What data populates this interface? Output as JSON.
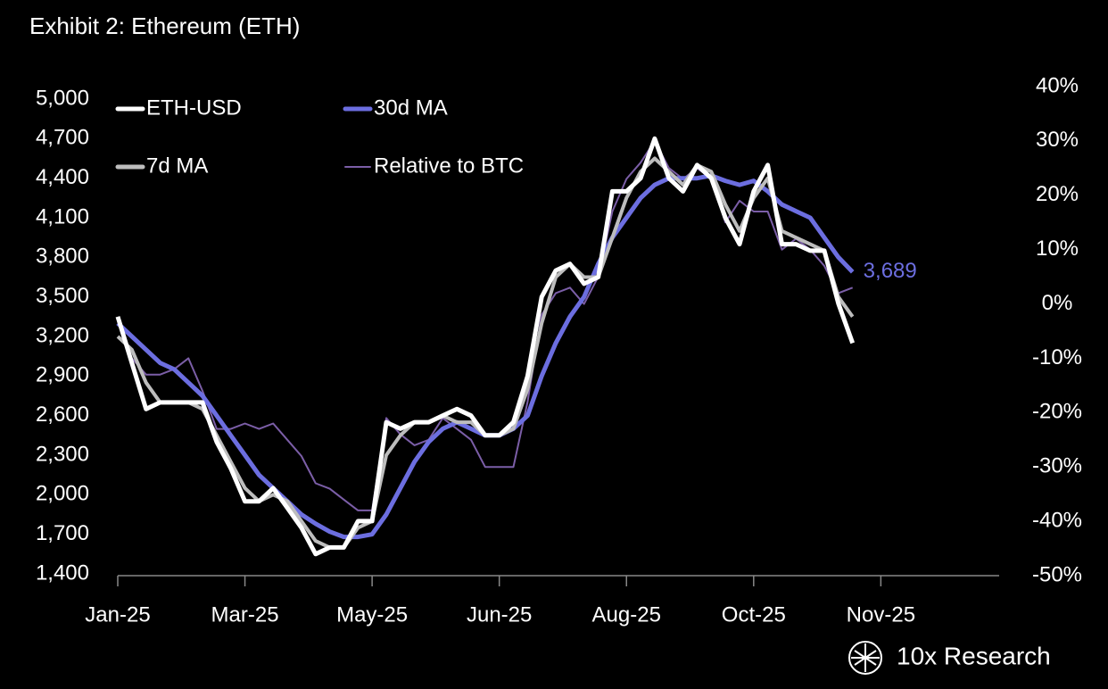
{
  "chart_data": {
    "type": "line",
    "title": "Exhibit 2: Ethereum (ETH)",
    "source": "10x Research",
    "categories": [
      "Jan-25",
      null,
      null,
      null,
      null,
      null,
      null,
      null,
      null,
      "Mar-25",
      null,
      null,
      null,
      null,
      null,
      null,
      null,
      null,
      "May-25",
      null,
      null,
      null,
      null,
      null,
      null,
      null,
      null,
      "Jun-25",
      null,
      null,
      null,
      null,
      null,
      null,
      null,
      null,
      "Aug-25",
      null,
      null,
      null,
      null,
      null,
      null,
      null,
      null,
      "Oct-25",
      null,
      null,
      null,
      null,
      null,
      null,
      null,
      null,
      "Nov-25"
    ],
    "series": [
      {
        "name": "Relative to BTC",
        "color": "#7b5ea7",
        "axis": "y2",
        "values": [
          -3,
          -10,
          -13,
          -13,
          -12,
          -10,
          -16,
          -23,
          -23,
          -22,
          -23,
          -22,
          -25,
          -28,
          -33,
          -34,
          -36,
          -38,
          -38,
          -21,
          -24,
          -26,
          -25,
          -21,
          -23,
          -25,
          -30,
          -30,
          -30,
          -18,
          -2,
          2,
          3,
          0,
          5,
          17,
          23,
          26,
          30,
          25,
          23,
          25,
          23,
          15,
          19,
          17,
          17,
          10,
          12,
          10,
          7,
          2,
          3,
          null,
          null
        ]
      },
      {
        "name": "30d MA",
        "color": "#6c6ee0",
        "values": [
          3300,
          3200,
          3100,
          3000,
          2950,
          2850,
          2750,
          2600,
          2450,
          2300,
          2150,
          2050,
          1950,
          1850,
          1780,
          1720,
          1680,
          1680,
          1700,
          1850,
          2050,
          2250,
          2400,
          2500,
          2550,
          2500,
          2450,
          2450,
          2500,
          2600,
          2900,
          3150,
          3350,
          3500,
          3750,
          3950,
          4100,
          4250,
          4350,
          4400,
          4400,
          4400,
          4420,
          4380,
          4350,
          4380,
          4300,
          4200,
          4150,
          4100,
          3950,
          3800,
          3689,
          null,
          null
        ]
      },
      {
        "name": "7d MA",
        "color": "#bdbdbd",
        "values": [
          3200,
          3100,
          2850,
          2700,
          2700,
          2700,
          2650,
          2450,
          2250,
          2050,
          1950,
          2000,
          1950,
          1800,
          1650,
          1600,
          1600,
          1750,
          1800,
          2300,
          2450,
          2550,
          2550,
          2600,
          2550,
          2550,
          2450,
          2450,
          2500,
          2800,
          3300,
          3650,
          3750,
          3650,
          3650,
          3950,
          4250,
          4450,
          4550,
          4450,
          4350,
          4500,
          4450,
          4200,
          4000,
          4250,
          4400,
          4000,
          3950,
          3900,
          3850,
          3500,
          3350,
          null,
          null
        ]
      },
      {
        "name": "ETH-USD",
        "color": "#ffffff",
        "values": [
          3350,
          3000,
          2650,
          2700,
          2700,
          2700,
          2700,
          2400,
          2200,
          1950,
          1950,
          2050,
          1900,
          1750,
          1550,
          1600,
          1600,
          1800,
          1800,
          2550,
          2500,
          2550,
          2550,
          2600,
          2650,
          2600,
          2450,
          2450,
          2550,
          2900,
          3500,
          3700,
          3750,
          3600,
          3650,
          4300,
          4300,
          4400,
          4700,
          4400,
          4300,
          4500,
          4400,
          4100,
          3900,
          4300,
          4500,
          3900,
          3900,
          3850,
          3850,
          3450,
          3150,
          null,
          null
        ]
      }
    ],
    "ylim": [
      1400,
      5000
    ],
    "yticks": [
      {
        "value": 1400,
        "label": "1,400"
      },
      {
        "value": 1700,
        "label": "1,700"
      },
      {
        "value": 2000,
        "label": "2,000"
      },
      {
        "value": 2300,
        "label": "2,300"
      },
      {
        "value": 2600,
        "label": "2,600"
      },
      {
        "value": 2900,
        "label": "2,900"
      },
      {
        "value": 3200,
        "label": "3,200"
      },
      {
        "value": 3500,
        "label": "3,500"
      },
      {
        "value": 3800,
        "label": "3,800"
      },
      {
        "value": 4100,
        "label": "4,100"
      },
      {
        "value": 4400,
        "label": "4,400"
      },
      {
        "value": 4700,
        "label": "4,700"
      },
      {
        "value": 5000,
        "label": "5,000"
      }
    ],
    "y2lim": [
      -50,
      40
    ],
    "y2ticks": [
      {
        "value": -50,
        "label": "-50%"
      },
      {
        "value": -40,
        "label": "-40%"
      },
      {
        "value": -30,
        "label": "-30%"
      },
      {
        "value": -20,
        "label": "-20%"
      },
      {
        "value": -10,
        "label": "-10%"
      },
      {
        "value": 0,
        "label": "0%"
      },
      {
        "value": 10,
        "label": "10%"
      },
      {
        "value": 20,
        "label": "20%"
      },
      {
        "value": 30,
        "label": "30%"
      },
      {
        "value": 40,
        "label": "40%"
      }
    ],
    "annotations": [
      {
        "value": 3689,
        "label": "3,689",
        "color": "#6c6ee0"
      }
    ],
    "legend": "upper left",
    "grid": false
  }
}
